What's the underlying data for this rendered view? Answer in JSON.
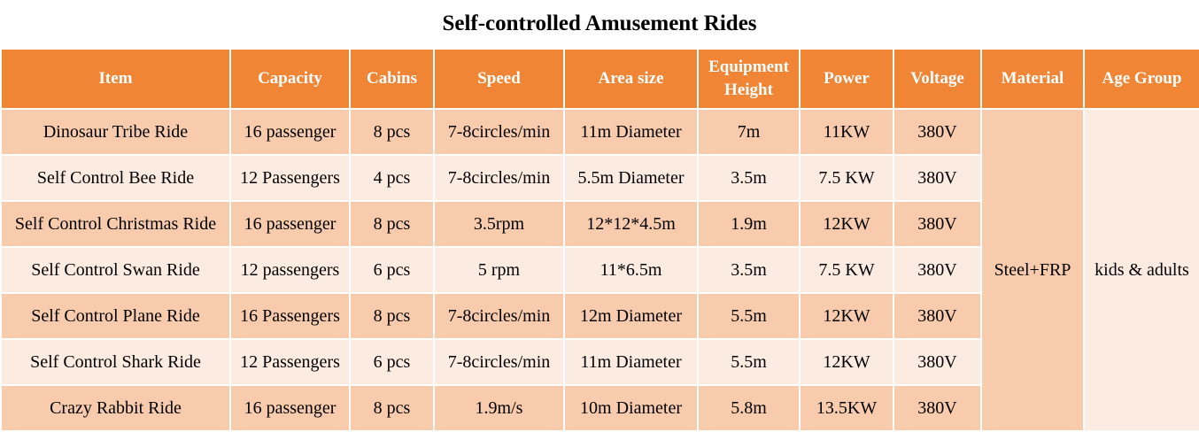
{
  "title": "Self-controlled Amusement Rides",
  "headers": {
    "item": "Item",
    "capacity": "Capacity",
    "cabins": "Cabins",
    "speed": "Speed",
    "area": "Area size",
    "height_line1": "Equipment",
    "height_line2": "Height",
    "power": "Power",
    "voltage": "Voltage",
    "material": "Material",
    "age": "Age Group"
  },
  "rows": [
    {
      "item": "Dinosaur Tribe Ride",
      "capacity": "16 passenger",
      "cabins": "8 pcs",
      "speed": "7-8circles/min",
      "area": "11m Diameter",
      "height": "7m",
      "power": "11KW",
      "voltage": "380V"
    },
    {
      "item": "Self Control Bee Ride",
      "capacity": "12 Passengers",
      "cabins": "4 pcs",
      "speed": "7-8circles/min",
      "area": "5.5m Diameter",
      "height": "3.5m",
      "power": "7.5 KW",
      "voltage": "380V"
    },
    {
      "item": "Self Control Christmas Ride",
      "capacity": "16 passenger",
      "cabins": "8 pcs",
      "speed": "3.5rpm",
      "area": "12*12*4.5m",
      "height": "1.9m",
      "power": "12KW",
      "voltage": "380V"
    },
    {
      "item": "Self Control Swan Ride",
      "capacity": "12 passengers",
      "cabins": "6 pcs",
      "speed": "5 rpm",
      "area": "11*6.5m",
      "height": "3.5m",
      "power": "7.5 KW",
      "voltage": "380V"
    },
    {
      "item": "Self Control Plane Ride",
      "capacity": "16 Passengers",
      "cabins": "8 pcs",
      "speed": "7-8circles/min",
      "area": "12m Diameter",
      "height": "5.5m",
      "power": "12KW",
      "voltage": "380V"
    },
    {
      "item": "Self Control Shark Ride",
      "capacity": "12 Passengers",
      "cabins": "6 pcs",
      "speed": "7-8circles/min",
      "area": "11m Diameter",
      "height": "5.5m",
      "power": "12KW",
      "voltage": "380V"
    },
    {
      "item": "Crazy Rabbit Ride",
      "capacity": "16 passenger",
      "cabins": "8 pcs",
      "speed": "1.9m/s",
      "area": "10m Diameter",
      "height": "5.8m",
      "power": "13.5KW",
      "voltage": "380V"
    }
  ],
  "material": "Steel+FRP",
  "age_group": "kids & adults"
}
